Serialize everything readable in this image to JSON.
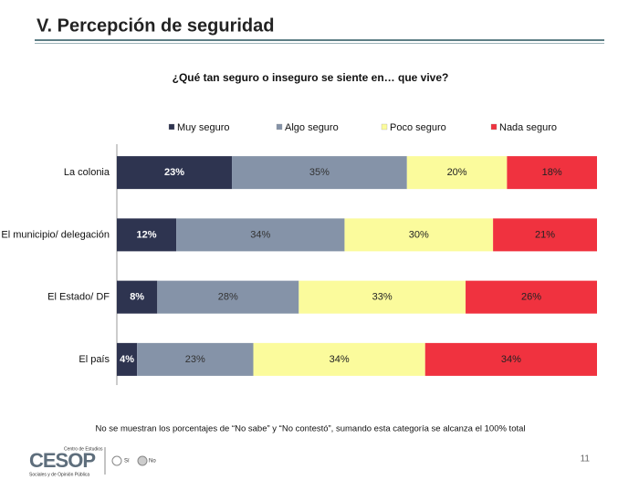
{
  "slide": {
    "title": "V. Percepción de seguridad",
    "page_number": "11",
    "logo": {
      "name": "CESOP",
      "tagline_top": "Centro de Estudios",
      "tagline_bottom": "Sociales y de Opinión Pública",
      "yes": "Sí",
      "no": "No"
    }
  },
  "footnote": "No se muestran los porcentajes de “No sabe” y “No contestó”, sumando esta categoría se alcanza el 100% total",
  "chart_data": {
    "type": "bar",
    "orientation": "horizontal",
    "stacked": "percent",
    "title": "¿Qué tan seguro o inseguro se siente en… que vive?",
    "categories": [
      "La colonia",
      "El municipio/ delegación",
      "El Estado/ DF",
      "El país"
    ],
    "legend": "top",
    "series": [
      {
        "name": "Muy seguro",
        "color": "#2e3450",
        "label_color": "#ffffff",
        "values": [
          23,
          12,
          8,
          4
        ],
        "value_labels": [
          "23%",
          "12%",
          "8%",
          "4%"
        ]
      },
      {
        "name": "Algo seguro",
        "color": "#8593a8",
        "label_color": "#333333",
        "values": [
          35,
          34,
          28,
          23
        ],
        "value_labels": [
          "35%",
          "34%",
          "28%",
          "23%"
        ]
      },
      {
        "name": "Poco seguro",
        "color": "#fbfb9c",
        "label_color": "#222222",
        "values": [
          20,
          30,
          33,
          34
        ],
        "value_labels": [
          "20%",
          "30%",
          "33%",
          "34%"
        ]
      },
      {
        "name": "Nada seguro",
        "color": "#f0323f",
        "label_color": "#222222",
        "values": [
          18,
          21,
          26,
          34
        ],
        "value_labels": [
          "18%",
          "21%",
          "26%",
          "34%"
        ]
      }
    ]
  }
}
